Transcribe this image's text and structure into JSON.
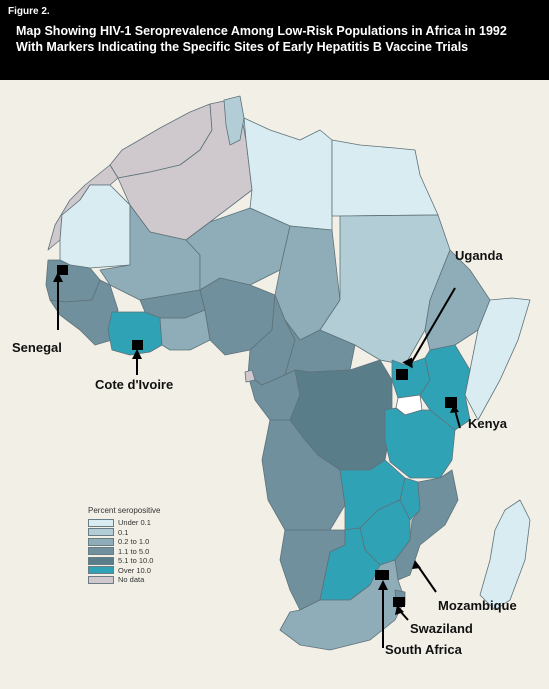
{
  "figure": {
    "label": "Figure 2.",
    "title_line1": "Map Showing HIV-1 Seroprevalence Among Low-Risk Populations in Africa in 1992",
    "title_line2": "With Markers Indicating the Specific Sites of Early Hepatitis B Vaccine Trials"
  },
  "colors": {
    "under_0_1": "#d9ecf2",
    "p0_1": "#b3cdd6",
    "p0_2_1": "#8fadb8",
    "p1_5": "#6f909c",
    "p5_10": "#5a7d8a",
    "over_10": "#2fa3b5",
    "no_data": "#cfc8cc",
    "background": "#f1efe6"
  },
  "legend": {
    "title": "Percent seropositive",
    "items": [
      {
        "label": "Under 0.1",
        "color": "#d9ecf2"
      },
      {
        "label": "0.1",
        "color": "#b3cdd6"
      },
      {
        "label": "0.2 to 1.0",
        "color": "#8fadb8"
      },
      {
        "label": "1.1 to 5.0",
        "color": "#6f909c"
      },
      {
        "label": "5.1 to 10.0",
        "color": "#5a7d8a"
      },
      {
        "label": "Over 10.0",
        "color": "#2fa3b5"
      },
      {
        "label": "No data",
        "color": "#cfc8cc"
      }
    ]
  },
  "trial_sites": {
    "uganda": "Uganda",
    "senegal": "Senegal",
    "cote_divoire": "Cote d'Ivoire",
    "kenya": "Kenya",
    "mozambique": "Mozambique",
    "swaziland": "Swaziland",
    "south_africa": "South Africa"
  }
}
